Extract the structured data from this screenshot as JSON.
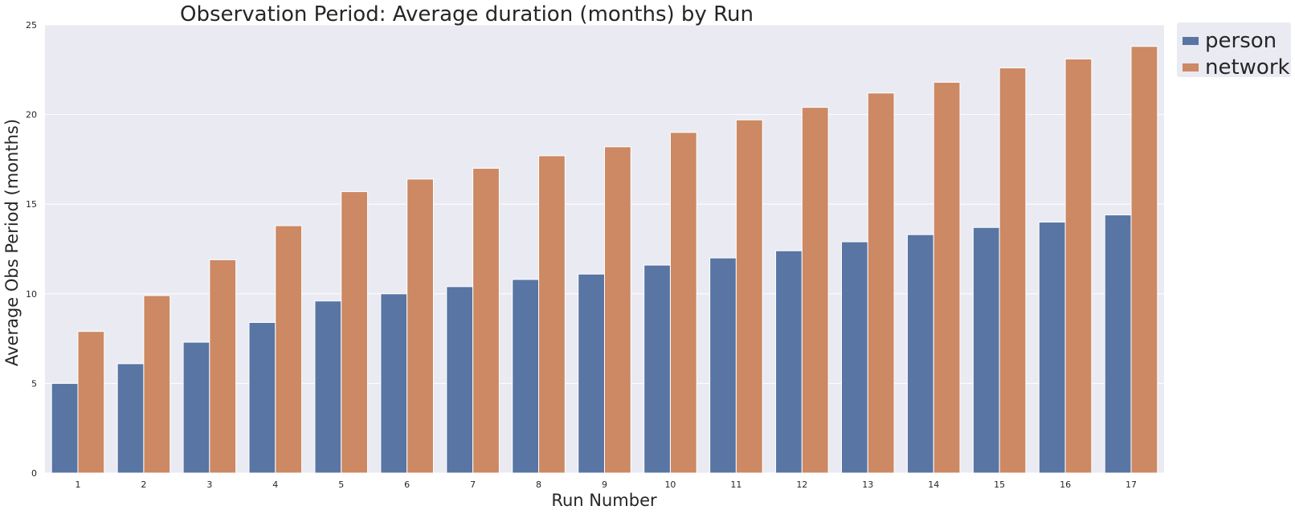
{
  "chart_data": {
    "type": "bar",
    "title": "Observation Period: Average duration (months) by Run",
    "xlabel": "Run Number",
    "ylabel": "Average Obs Period (months)",
    "categories": [
      "1",
      "2",
      "3",
      "4",
      "5",
      "6",
      "7",
      "8",
      "9",
      "10",
      "11",
      "12",
      "13",
      "14",
      "15",
      "16",
      "17"
    ],
    "series": [
      {
        "name": "person",
        "color": "#5875a4",
        "values": [
          5.0,
          6.1,
          7.3,
          8.4,
          9.6,
          10.0,
          10.4,
          10.8,
          11.1,
          11.6,
          12.0,
          12.4,
          12.9,
          13.3,
          13.7,
          14.0,
          14.4
        ]
      },
      {
        "name": "network",
        "color": "#cc8963",
        "values": [
          7.9,
          9.9,
          11.9,
          13.8,
          15.7,
          16.4,
          17.0,
          17.7,
          18.2,
          19.0,
          19.7,
          20.4,
          21.2,
          21.8,
          22.6,
          23.1,
          23.8
        ]
      }
    ],
    "ylim": [
      0,
      25
    ],
    "yticks": [
      0,
      5,
      10,
      15,
      20,
      25
    ],
    "grid": true,
    "background": "#eaeaf2",
    "legend_position": "outside-top-right"
  }
}
